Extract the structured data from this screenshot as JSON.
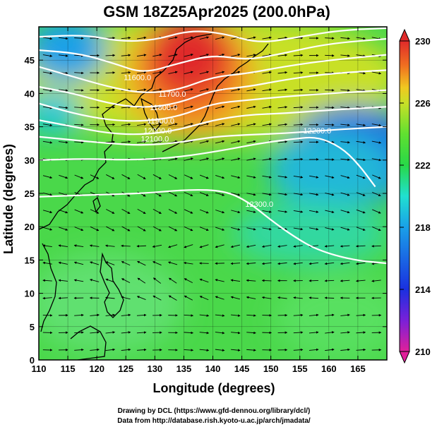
{
  "chart_data": {
    "type": "heatmap",
    "title": "GSM 18Z25Apr2025 (200.0hPa)",
    "xlabel": "Longitude (degrees)",
    "ylabel": "Latitude  (degrees)",
    "xlim": [
      110,
      170
    ],
    "ylim": [
      0,
      50
    ],
    "xticks": [
      110,
      115,
      120,
      125,
      130,
      135,
      140,
      145,
      150,
      155,
      160,
      165
    ],
    "yticks": [
      0,
      5,
      10,
      15,
      20,
      25,
      30,
      35,
      40,
      45
    ],
    "grid": true,
    "colorbar": {
      "min": 210,
      "max": 230,
      "ticks": [
        210,
        214,
        218,
        222,
        226,
        230
      ],
      "colors": [
        "#e0209a",
        "#7a20d8",
        "#1a30e0",
        "#1aa0e8",
        "#20e0d0",
        "#28d848",
        "#60e030",
        "#c8e028",
        "#f0c820",
        "#f07020",
        "#e02a2a"
      ]
    },
    "field_description": "temperature-like shaded field with warm core near 130-140E, 38-50N",
    "contours": [
      {
        "label": "11600.0",
        "lon": 127,
        "lat": 42
      },
      {
        "label": "11700.0",
        "lon": 133,
        "lat": 39.5
      },
      {
        "label": "11800.0",
        "lon": 131.5,
        "lat": 37.5
      },
      {
        "label": "11900.0",
        "lon": 131,
        "lat": 35.5
      },
      {
        "label": "12000.0",
        "lon": 130.5,
        "lat": 34
      },
      {
        "label": "12100.0",
        "lon": 130,
        "lat": 32.8
      },
      {
        "label": "12200.0",
        "lon": 158,
        "lat": 34
      },
      {
        "label": "12300.0",
        "lon": 148,
        "lat": 23
      }
    ],
    "contour_lines": [
      {
        "level": 11500,
        "points": [
          [
            110,
            48.5
          ],
          [
            118,
            48.8
          ],
          [
            124,
            47.8
          ],
          [
            130,
            48
          ],
          [
            136,
            49.5
          ],
          [
            142,
            49
          ],
          [
            148,
            47.5
          ],
          [
            155,
            48.5
          ],
          [
            162,
            49.5
          ],
          [
            170,
            49.8
          ]
        ]
      },
      {
        "level": 11600,
        "points": [
          [
            110,
            46.5
          ],
          [
            117,
            46
          ],
          [
            123,
            44.5
          ],
          [
            128,
            43
          ],
          [
            134,
            44.5
          ],
          [
            140,
            45.8
          ],
          [
            146,
            45
          ],
          [
            152,
            46
          ],
          [
            160,
            47.5
          ],
          [
            170,
            48.2
          ]
        ]
      },
      {
        "level": 11700,
        "points": [
          [
            110,
            44
          ],
          [
            116,
            42.5
          ],
          [
            122,
            41
          ],
          [
            128,
            40
          ],
          [
            134,
            40.5
          ],
          [
            140,
            42.5
          ],
          [
            146,
            43
          ],
          [
            152,
            44
          ],
          [
            160,
            45
          ],
          [
            170,
            45.8
          ]
        ]
      },
      {
        "level": 11800,
        "points": [
          [
            110,
            41
          ],
          [
            116,
            40
          ],
          [
            122,
            38.5
          ],
          [
            128,
            37.8
          ],
          [
            134,
            38.5
          ],
          [
            140,
            40.5
          ],
          [
            146,
            41
          ],
          [
            152,
            42
          ],
          [
            160,
            43
          ],
          [
            170,
            43.5
          ]
        ]
      },
      {
        "level": 11900,
        "points": [
          [
            110,
            38.5
          ],
          [
            116,
            37
          ],
          [
            122,
            36
          ],
          [
            128,
            35.8
          ],
          [
            134,
            36.5
          ],
          [
            140,
            38.5
          ],
          [
            146,
            39
          ],
          [
            152,
            39.5
          ],
          [
            160,
            40
          ],
          [
            170,
            40.5
          ]
        ]
      },
      {
        "level": 12000,
        "points": [
          [
            110,
            36
          ],
          [
            116,
            35
          ],
          [
            122,
            34
          ],
          [
            128,
            33.8
          ],
          [
            134,
            34.5
          ],
          [
            140,
            36
          ],
          [
            146,
            36.8
          ],
          [
            152,
            37
          ],
          [
            160,
            37.5
          ],
          [
            170,
            38
          ]
        ]
      },
      {
        "level": 12100,
        "points": [
          [
            110,
            33.5
          ],
          [
            116,
            33
          ],
          [
            122,
            32.5
          ],
          [
            128,
            32.2
          ],
          [
            134,
            32.6
          ],
          [
            140,
            33.5
          ],
          [
            146,
            33.8
          ],
          [
            152,
            34
          ],
          [
            160,
            34.5
          ],
          [
            170,
            35
          ]
        ]
      },
      {
        "level": 12200,
        "points": [
          [
            110,
            30
          ],
          [
            118,
            30.2
          ],
          [
            126,
            30
          ],
          [
            134,
            30.4
          ],
          [
            142,
            31.5
          ],
          [
            148,
            32.5
          ],
          [
            154,
            33.2
          ],
          [
            158,
            33.5
          ],
          [
            162,
            32
          ],
          [
            165,
            29.5
          ],
          [
            168,
            26
          ]
        ]
      },
      {
        "level": 12300,
        "points": [
          [
            110,
            24.5
          ],
          [
            120,
            24.8
          ],
          [
            128,
            25
          ],
          [
            136,
            25.6
          ],
          [
            142,
            25.4
          ],
          [
            146,
            23.8
          ],
          [
            150,
            21
          ],
          [
            154,
            18.5
          ],
          [
            158,
            16.5
          ],
          [
            164,
            15
          ],
          [
            170,
            14.5
          ]
        ]
      }
    ]
  },
  "credits": {
    "line1": "Drawing by DCL (https://www.gfd-dennou.org/library/dcl/)",
    "line2": "Data from http://database.rish.kyoto-u.ac.jp/arch/jmadata/"
  }
}
